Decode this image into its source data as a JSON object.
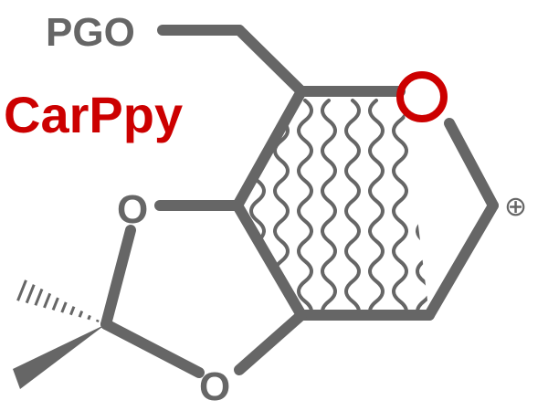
{
  "labels": {
    "protecting_group": "PGO",
    "brand": "CarPpy",
    "ring_oxygen_left_top": "O",
    "ring_oxygen_left_bottom": "O",
    "charge": "⊕"
  },
  "colors": {
    "bond": "#666666",
    "brand": "#cc0000",
    "ring_oxygen": "#cc0000",
    "background": "#ffffff"
  },
  "icons": {
    "ring_oxygen": "red-circle-oxygen",
    "stereo_dash": "hashed-wedge-bond",
    "stereo_wedge": "solid-wedge-bond",
    "conformation": "wavy-lines-pattern"
  }
}
